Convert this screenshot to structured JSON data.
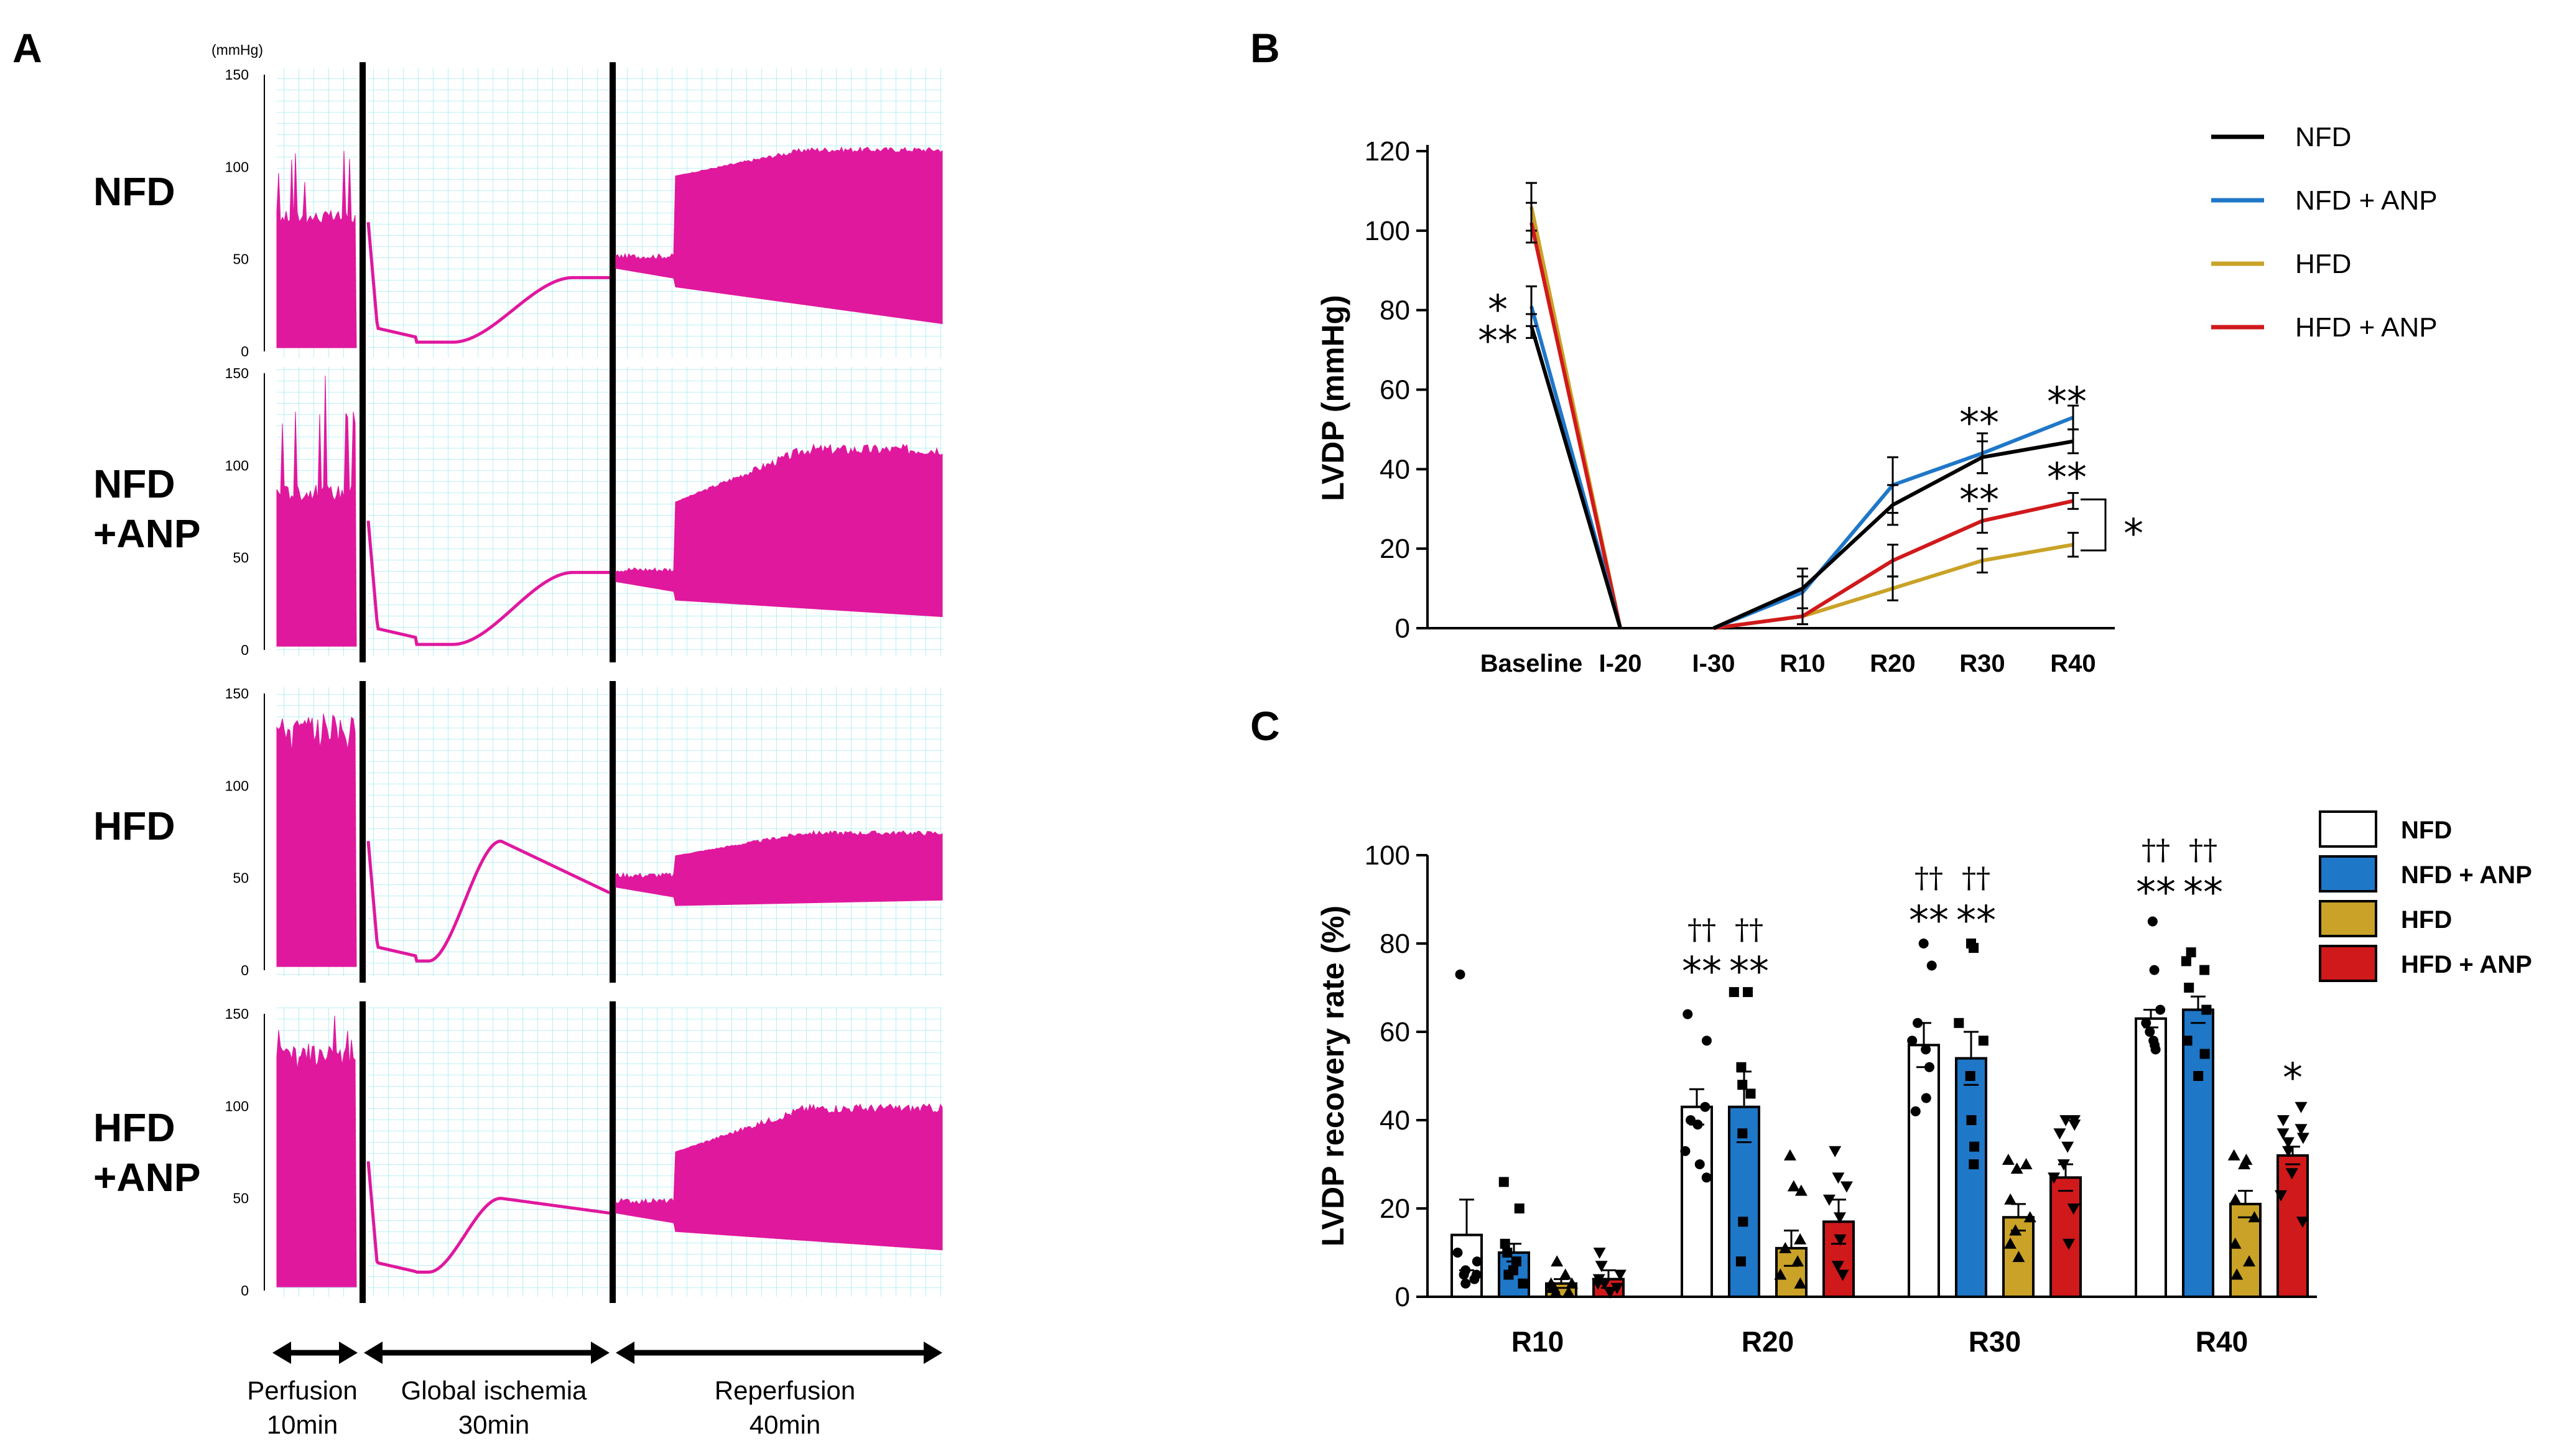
{
  "panel_letters": {
    "a": "A",
    "b": "B",
    "c": "C"
  },
  "chart_data": [
    {
      "type": "line",
      "panel": "A",
      "description_role": "pressure traces",
      "units_label": "(mmHg)",
      "y_ticks": [
        "150",
        "100",
        "50",
        "0"
      ],
      "ylim": [
        0,
        150
      ],
      "trace_color": "#e0189e",
      "grid_color": "#9fe8f0",
      "rows": [
        {
          "label_line1": "NFD",
          "label_line2": ""
        },
        {
          "label_line1": "NFD",
          "label_line2": "+ANP"
        },
        {
          "label_line1": "HFD",
          "label_line2": ""
        },
        {
          "label_line1": "HFD",
          "label_line2": "+ANP"
        }
      ],
      "phases": [
        {
          "name": "Perfusion",
          "duration": "10min"
        },
        {
          "name": "Global ischemia",
          "duration": "30min"
        },
        {
          "name": "Reperfusion",
          "duration": "40min"
        }
      ]
    },
    {
      "type": "line",
      "panel": "B",
      "ylabel": "LVDP (mmHg)",
      "xlabel": "",
      "ylim": [
        0,
        120
      ],
      "y_ticks": [
        "0",
        "20",
        "40",
        "60",
        "80",
        "100",
        "120"
      ],
      "categories": [
        "Baseline",
        "I-20",
        "I-30",
        "R10",
        "R20",
        "R30",
        "R40"
      ],
      "series": [
        {
          "name": "NFD",
          "color": "#000000",
          "values": [
            76,
            0,
            0,
            10,
            31,
            43,
            47
          ],
          "errors": [
            3,
            0,
            0,
            5,
            5,
            4,
            3
          ]
        },
        {
          "name": "NFD + ANP",
          "color": "#1f77c8",
          "values": [
            81,
            0,
            0,
            9,
            36,
            44,
            53
          ],
          "errors": [
            5,
            0,
            0,
            4,
            7,
            5,
            3
          ]
        },
        {
          "name": "HFD",
          "color": "#c9a227",
          "values": [
            106,
            0,
            0,
            3,
            10,
            17,
            21
          ],
          "errors": [
            6,
            0,
            0,
            2,
            3,
            3,
            3
          ]
        },
        {
          "name": "HFD + ANP",
          "color": "#d0191b",
          "values": [
            102,
            0,
            0,
            3,
            17,
            27,
            32
          ],
          "errors": [
            5,
            0,
            0,
            2,
            4,
            3,
            2
          ]
        }
      ],
      "significance": {
        "baseline": [
          "*",
          "**"
        ],
        "r30": [
          "**",
          "**"
        ],
        "r40": [
          "**",
          "**"
        ],
        "bracket": "*"
      }
    },
    {
      "type": "bar",
      "panel": "C",
      "ylabel": "LVDP recovery rate (%)",
      "ylim": [
        0,
        100
      ],
      "y_ticks": [
        "0",
        "20",
        "40",
        "60",
        "80",
        "100"
      ],
      "categories": [
        "R10",
        "R20",
        "R30",
        "R40"
      ],
      "series": [
        {
          "name": "NFD",
          "color": "#ffffff",
          "marker": "circle",
          "values": [
            14,
            43,
            57,
            63
          ],
          "errors": [
            8,
            4,
            5,
            2
          ],
          "points": [
            [
              73,
              10,
              5,
              3,
              5,
              6,
              4,
              8
            ],
            [
              64,
              58,
              43,
              40,
              39,
              33,
              30,
              27
            ],
            [
              80,
              75,
              62,
              58,
              56,
              52,
              45,
              42
            ],
            [
              85,
              74,
              65,
              62,
              60,
              58,
              57,
              56
            ]
          ]
        },
        {
          "name": "NFD + ANP",
          "color": "#1f77c8",
          "marker": "square",
          "values": [
            10,
            43,
            54,
            65
          ],
          "errors": [
            2,
            8,
            6,
            3
          ],
          "points": [
            [
              26,
              20,
              12,
              10,
              8,
              6,
              5,
              3
            ],
            [
              69,
              69,
              52,
              48,
              46,
              37,
              17,
              8
            ],
            [
              80,
              79,
              62,
              58,
              50,
              40,
              34,
              30
            ],
            [
              78,
              76,
              74,
              70,
              65,
              58,
              55,
              50
            ]
          ]
        },
        {
          "name": "HFD",
          "color": "#c9a227",
          "marker": "triangle-up",
          "values": [
            3,
            11,
            18,
            21
          ],
          "errors": [
            1,
            4,
            3,
            3
          ],
          "points": [
            [
              8,
              5,
              3,
              2,
              1,
              2,
              1,
              3
            ],
            [
              32,
              25,
              24,
              13,
              11,
              8,
              5,
              3
            ],
            [
              31,
              30,
              29,
              22,
              18,
              15,
              12,
              9
            ],
            [
              32,
              31,
              30,
              22,
              18,
              12,
              8,
              5
            ]
          ]
        },
        {
          "name": "HFD + ANP",
          "color": "#d0191b",
          "marker": "triangle-down",
          "values": [
            4,
            17,
            27,
            32
          ],
          "errors": [
            2,
            5,
            3,
            2
          ],
          "points": [
            [
              10,
              7,
              5,
              4,
              3,
              2,
              1,
              3
            ],
            [
              33,
              27,
              25,
              22,
              18,
              13,
              7,
              5
            ],
            [
              40,
              40,
              39,
              37,
              34,
              30,
              27,
              20,
              12
            ],
            [
              43,
              40,
              38,
              37,
              36,
              35,
              33,
              28,
              23,
              17
            ]
          ]
        }
      ],
      "annotations": {
        "R20": {
          "dagger": [
            "††",
            "††"
          ],
          "stars": [
            "**",
            "**"
          ]
        },
        "R30": {
          "dagger": [
            "††",
            "††"
          ],
          "stars": [
            "**",
            "**"
          ]
        },
        "R40": {
          "dagger": [
            "††",
            "††"
          ],
          "stars": [
            "**",
            "**"
          ],
          "hfd_anp": "*"
        }
      }
    }
  ]
}
